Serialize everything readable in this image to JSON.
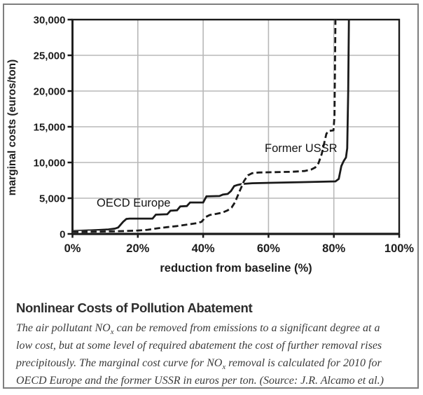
{
  "figure": {
    "title": "Nonlinear Costs of Pollution Abatement",
    "caption_lines": [
      {
        "pre": "The air pollutant NO",
        "sub": "x",
        "post": " can be removed from emissions to a significant degree at a"
      },
      {
        "pre": "low cost, but at some level of required abatement the cost of further removal rises"
      },
      {
        "pre": "precipitously. The marginal cost curve for NO",
        "sub": "x",
        "post": " removal is calculated for 2010 for"
      },
      {
        "pre": "OECD Europe and the former USSR in euros per ton. (Source: J.R. Alcamo et al.)"
      }
    ]
  },
  "chart_data": {
    "type": "line",
    "title": "",
    "xlabel": "reduction from baseline (%)",
    "ylabel": "marginal costs (euros/ton)",
    "xlim": [
      0,
      100
    ],
    "ylim": [
      0,
      30000
    ],
    "grid": true,
    "legend_position": "inline-labels",
    "colors": {
      "line": "#1a1a1a",
      "grid": "#b8b8b8",
      "frame": "#1a1a1a",
      "background": "#ffffff"
    },
    "x_ticks": [
      {
        "pct": 0,
        "label": "0%"
      },
      {
        "pct": 20,
        "label": "20%"
      },
      {
        "pct": 40,
        "label": "40%"
      },
      {
        "pct": 60,
        "label": "60%"
      },
      {
        "pct": 80,
        "label": "80%"
      },
      {
        "pct": 100,
        "label": "100%"
      }
    ],
    "y_ticks": [
      {
        "value": 0,
        "label": "0"
      },
      {
        "value": 5000,
        "label": "5,000"
      },
      {
        "value": 10000,
        "label": "10,000"
      },
      {
        "value": 15000,
        "label": "15,000"
      },
      {
        "value": 20000,
        "label": "20,000"
      },
      {
        "value": 25000,
        "label": "25,000"
      },
      {
        "value": 30000,
        "label": "30,000"
      }
    ],
    "series": [
      {
        "name": "OECD Europe",
        "style": "solid",
        "color": "#1a1a1a",
        "points": [
          [
            0,
            400
          ],
          [
            4,
            470
          ],
          [
            8,
            550
          ],
          [
            11,
            630
          ],
          [
            13,
            750
          ],
          [
            14,
            900
          ],
          [
            15.5,
            1700
          ],
          [
            16.5,
            2100
          ],
          [
            17.5,
            2150
          ],
          [
            24.5,
            2150
          ],
          [
            25.5,
            2700
          ],
          [
            29,
            2750
          ],
          [
            30,
            3250
          ],
          [
            32,
            3300
          ],
          [
            33,
            3850
          ],
          [
            35,
            3900
          ],
          [
            36,
            4400
          ],
          [
            40,
            4400
          ],
          [
            41,
            5250
          ],
          [
            45,
            5300
          ],
          [
            46,
            5500
          ],
          [
            47.5,
            5600
          ],
          [
            48.5,
            6000
          ],
          [
            49.5,
            6700
          ],
          [
            50.5,
            6850
          ],
          [
            52,
            7000
          ],
          [
            55,
            7100
          ],
          [
            70,
            7250
          ],
          [
            80.5,
            7350
          ],
          [
            81.5,
            7700
          ],
          [
            82.3,
            9500
          ],
          [
            83,
            10200
          ],
          [
            83.7,
            10700
          ],
          [
            84.1,
            12000
          ],
          [
            84.4,
            20000
          ],
          [
            84.6,
            30000
          ]
        ]
      },
      {
        "name": "Former USSR",
        "style": "dashed",
        "color": "#1a1a1a",
        "points": [
          [
            0,
            250
          ],
          [
            4,
            290
          ],
          [
            8,
            320
          ],
          [
            12,
            360
          ],
          [
            16,
            400
          ],
          [
            20,
            470
          ],
          [
            23,
            580
          ],
          [
            26,
            780
          ],
          [
            29,
            950
          ],
          [
            32,
            1100
          ],
          [
            35,
            1300
          ],
          [
            38,
            1500
          ],
          [
            39.5,
            1700
          ],
          [
            40.7,
            2350
          ],
          [
            42,
            2650
          ],
          [
            44,
            2800
          ],
          [
            46,
            3000
          ],
          [
            47.5,
            3300
          ],
          [
            48.7,
            3700
          ],
          [
            49.7,
            4400
          ],
          [
            51,
            5800
          ],
          [
            52.5,
            7400
          ],
          [
            53.7,
            8200
          ],
          [
            55,
            8500
          ],
          [
            57,
            8600
          ],
          [
            62,
            8650
          ],
          [
            67,
            8700
          ],
          [
            71,
            8800
          ],
          [
            73,
            9000
          ],
          [
            74.3,
            9300
          ],
          [
            75.3,
            9900
          ],
          [
            76.3,
            11200
          ],
          [
            77.2,
            13000
          ],
          [
            77.7,
            14000
          ],
          [
            78.3,
            14400
          ],
          [
            79.9,
            14500
          ],
          [
            80.2,
            16500
          ],
          [
            80.5,
            30000
          ]
        ]
      }
    ]
  }
}
